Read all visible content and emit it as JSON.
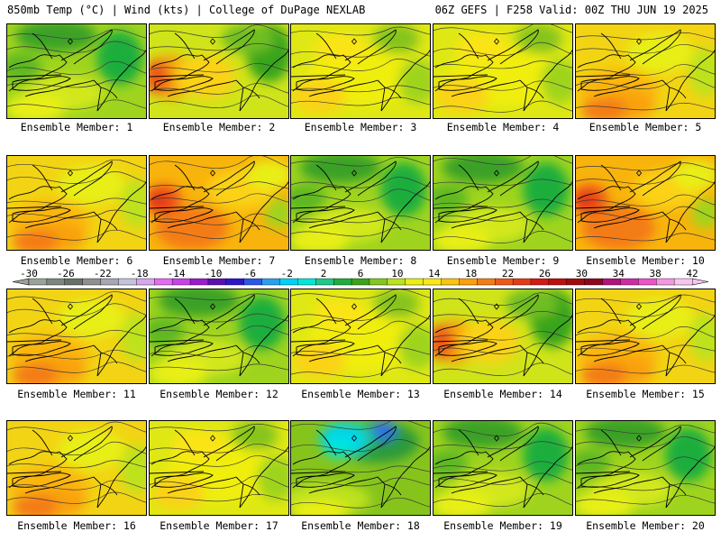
{
  "header": {
    "left": "850mb Temp (°C) | Wind (kts) | College of DuPage NEXLAB",
    "right": "06Z GEFS | F258 Valid: 00Z THU JUN 19 2025"
  },
  "colorbar": {
    "tick_labels": [
      "-30",
      "-26",
      "-22",
      "-18",
      "-14",
      "-10",
      "-6",
      "-2",
      "2",
      "6",
      "10",
      "14",
      "18",
      "22",
      "26",
      "30",
      "34",
      "38",
      "42"
    ],
    "colors": [
      "#9aa39a",
      "#7d877d",
      "#687168",
      "#8f8f8f",
      "#a6a6b4",
      "#c3c3dc",
      "#d6a6ee",
      "#e36cf0",
      "#c742e8",
      "#9a1ccd",
      "#5b0fb0",
      "#2a18c8",
      "#2d55e6",
      "#2a9ff0",
      "#00d2f6",
      "#00e6d8",
      "#1ec98a",
      "#1fae3c",
      "#39a41a",
      "#82c81e",
      "#bde21e",
      "#e8ef12",
      "#fde614",
      "#fbc40c",
      "#f9a10c",
      "#f47c14",
      "#ee5a19",
      "#e43a19",
      "#d61717",
      "#bd0f0f",
      "#a00c0c",
      "#8c0620",
      "#b3127a",
      "#d02ba6",
      "#ec54c7",
      "#f696e4",
      "#f7c5f0"
    ]
  },
  "members": [
    {
      "label": "Ensemble Member: 1",
      "theme": "cool"
    },
    {
      "label": "Ensemble Member: 2",
      "theme": "warmgreen"
    },
    {
      "label": "Ensemble Member: 3",
      "theme": "mild"
    },
    {
      "label": "Ensemble Member: 4",
      "theme": "mild"
    },
    {
      "label": "Ensemble Member: 5",
      "theme": "warm"
    },
    {
      "label": "Ensemble Member: 6",
      "theme": "warm"
    },
    {
      "label": "Ensemble Member: 7",
      "theme": "hot"
    },
    {
      "label": "Ensemble Member: 8",
      "theme": "cool"
    },
    {
      "label": "Ensemble Member: 9",
      "theme": "cool"
    },
    {
      "label": "Ensemble Member: 10",
      "theme": "hot"
    },
    {
      "label": "Ensemble Member: 11",
      "theme": "warm"
    },
    {
      "label": "Ensemble Member: 12",
      "theme": "cool"
    },
    {
      "label": "Ensemble Member: 13",
      "theme": "mild"
    },
    {
      "label": "Ensemble Member: 14",
      "theme": "warmgreen"
    },
    {
      "label": "Ensemble Member: 15",
      "theme": "warm"
    },
    {
      "label": "Ensemble Member: 16",
      "theme": "warm"
    },
    {
      "label": "Ensemble Member: 17",
      "theme": "mild"
    },
    {
      "label": "Ensemble Member: 18",
      "theme": "cold"
    },
    {
      "label": "Ensemble Member: 19",
      "theme": "cool"
    },
    {
      "label": "Ensemble Member: 20",
      "theme": "cool"
    }
  ],
  "themes": {
    "cold": {
      "base": "#86c41c",
      "blobs": [
        [
          "#2a9a3a",
          0.62,
          0.22,
          0.5,
          0.32
        ],
        [
          "#1ec98a",
          0.4,
          0.18,
          0.32,
          0.25
        ],
        [
          "#00d6f0",
          0.37,
          0.2,
          0.24,
          0.2
        ],
        [
          "#00e6d8",
          0.34,
          0.28,
          0.14,
          0.1
        ],
        [
          "#2d6fe6",
          0.66,
          0.1,
          0.1,
          0.1
        ],
        [
          "#bde21e",
          0.25,
          0.82,
          0.55,
          0.25
        ],
        [
          "#e8ef12",
          0.2,
          0.95,
          0.35,
          0.14
        ]
      ]
    },
    "cool": {
      "base": "#9fd41e",
      "blobs": [
        [
          "#3aa126",
          0.35,
          0.12,
          0.5,
          0.22
        ],
        [
          "#1fae3c",
          0.8,
          0.35,
          0.25,
          0.45
        ],
        [
          "#d3e81a",
          0.4,
          0.72,
          0.5,
          0.25
        ],
        [
          "#e8ef12",
          0.2,
          0.88,
          0.35,
          0.18
        ],
        [
          "#5fb822",
          0.1,
          0.45,
          0.22,
          0.2
        ]
      ]
    },
    "mild": {
      "base": "#dfe814",
      "blobs": [
        [
          "#f0ee10",
          0.5,
          0.55,
          0.7,
          0.5
        ],
        [
          "#fbd214",
          0.2,
          0.75,
          0.3,
          0.25
        ],
        [
          "#9fd41e",
          0.9,
          0.6,
          0.2,
          0.35
        ],
        [
          "#86c41c",
          0.75,
          0.15,
          0.25,
          0.2
        ],
        [
          "#fbe414",
          0.35,
          0.25,
          0.3,
          0.2
        ]
      ]
    },
    "warm": {
      "base": "#f2d414",
      "blobs": [
        [
          "#fbb60c",
          0.3,
          0.7,
          0.5,
          0.35
        ],
        [
          "#f9a10c",
          0.35,
          0.85,
          0.35,
          0.2
        ],
        [
          "#e8ef12",
          0.6,
          0.3,
          0.4,
          0.3
        ],
        [
          "#bde21e",
          0.92,
          0.5,
          0.15,
          0.4
        ],
        [
          "#f47c14",
          0.2,
          0.9,
          0.25,
          0.15
        ]
      ]
    },
    "hot": {
      "base": "#f8b40c",
      "blobs": [
        [
          "#f47c14",
          0.3,
          0.75,
          0.45,
          0.35
        ],
        [
          "#ee5a19",
          0.1,
          0.45,
          0.18,
          0.2
        ],
        [
          "#e43a19",
          0.06,
          0.48,
          0.1,
          0.12
        ],
        [
          "#fbd214",
          0.65,
          0.35,
          0.4,
          0.3
        ],
        [
          "#e8ef12",
          0.85,
          0.2,
          0.25,
          0.2
        ],
        [
          "#9fd41e",
          0.92,
          0.6,
          0.12,
          0.2
        ]
      ]
    },
    "warmgreen": {
      "base": "#d0e41a",
      "blobs": [
        [
          "#f9a10c",
          0.15,
          0.55,
          0.25,
          0.35
        ],
        [
          "#ee5a19",
          0.05,
          0.55,
          0.1,
          0.25
        ],
        [
          "#fbd214",
          0.4,
          0.55,
          0.35,
          0.35
        ],
        [
          "#39a41a",
          0.85,
          0.3,
          0.25,
          0.5
        ],
        [
          "#6fbe22",
          0.7,
          0.15,
          0.3,
          0.2
        ]
      ]
    }
  }
}
